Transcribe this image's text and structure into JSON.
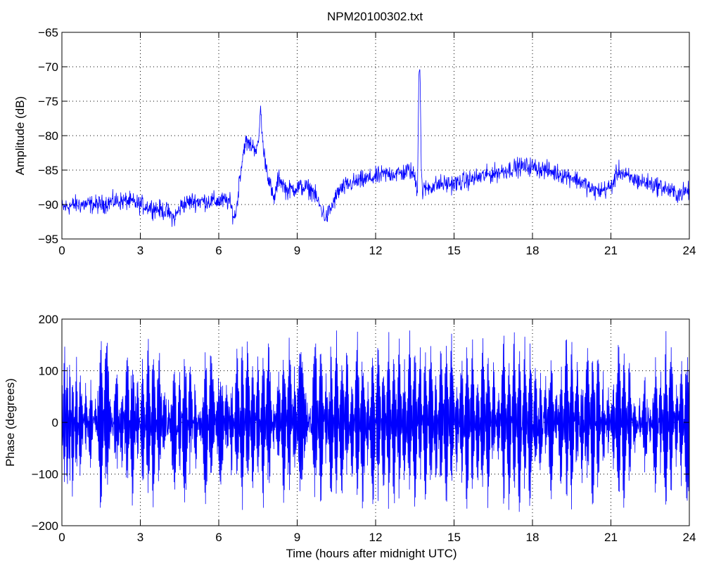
{
  "figure_title": "NPM20100302.txt",
  "colors": {
    "series": "#0000ff",
    "axes": "#000000",
    "grid": "#000000",
    "background": "#ffffff"
  },
  "chart_data": [
    {
      "type": "line",
      "title": "NPM20100302.txt",
      "xlabel": "",
      "ylabel": "Amplitude (dB)",
      "xlim": [
        0,
        24
      ],
      "ylim": [
        -95,
        -65
      ],
      "xticks": [
        0,
        3,
        6,
        9,
        12,
        15,
        18,
        21,
        24
      ],
      "yticks": [
        -95,
        -90,
        -85,
        -80,
        -75,
        -70,
        -65
      ],
      "grid": true,
      "noisy_trace": true,
      "series": [
        {
          "x": [
            0,
            0.5,
            1.0,
            1.5,
            2.0,
            2.5,
            3.0,
            3.5,
            4.0,
            4.3,
            4.6,
            5.0,
            5.5,
            6.0,
            6.4,
            6.6,
            6.7,
            6.8,
            7.0,
            7.3,
            7.5,
            7.6,
            7.7,
            7.9,
            8.1,
            8.3,
            8.6,
            9.0,
            9.3,
            9.6,
            9.9,
            10.1,
            10.3,
            10.6,
            11.0,
            11.5,
            12.0,
            12.5,
            13.0,
            13.3,
            13.5,
            13.6,
            13.65,
            13.7,
            13.75,
            13.8,
            14.0,
            14.5,
            15.0,
            15.5,
            16.0,
            16.5,
            17.0,
            17.5,
            18.0,
            18.5,
            19.0,
            19.5,
            20.0,
            20.3,
            20.6,
            21.0,
            21.3,
            21.6,
            22.0,
            22.5,
            23.0,
            23.5,
            24.0
          ],
          "y": [
            -90.5,
            -90,
            -90,
            -90,
            -89.5,
            -89.5,
            -90,
            -90.5,
            -91,
            -92,
            -90,
            -89.5,
            -89.5,
            -89.5,
            -89.5,
            -92,
            -90,
            -86,
            -81,
            -81.5,
            -82,
            -76,
            -82,
            -86,
            -89.5,
            -86,
            -88,
            -87.5,
            -87.5,
            -88,
            -90.5,
            -92,
            -90.5,
            -88,
            -87,
            -86.5,
            -86,
            -85.5,
            -85.5,
            -85,
            -86,
            -88,
            -71,
            -70,
            -86,
            -88,
            -87.5,
            -87,
            -87,
            -86.5,
            -86,
            -85.5,
            -85,
            -84.5,
            -84.5,
            -85,
            -85.5,
            -86,
            -87,
            -88,
            -88,
            -87.5,
            -85,
            -86,
            -86.5,
            -87,
            -87.5,
            -88.5,
            -88
          ]
        }
      ]
    },
    {
      "type": "line",
      "title": "",
      "xlabel": "Time (hours after midnight UTC)",
      "ylabel": "Phase (degrees)",
      "xlim": [
        0,
        24
      ],
      "ylim": [
        -200,
        200
      ],
      "xticks": [
        0,
        3,
        6,
        9,
        12,
        15,
        18,
        21,
        24
      ],
      "yticks": [
        -200,
        -100,
        0,
        100,
        200
      ],
      "grid": true,
      "phase_wrapped": true,
      "series": [
        {
          "x": [
            0,
            0.1,
            0.2,
            0.3,
            0.4,
            0.55,
            0.7,
            0.9,
            1.1,
            1.3,
            1.5,
            1.7,
            1.9,
            2.1,
            2.3,
            2.5,
            2.7,
            2.9,
            3.1,
            3.3,
            3.5,
            3.7,
            3.9,
            4.1,
            4.3,
            4.5,
            4.7,
            4.9,
            5.1,
            5.3,
            5.5,
            5.7,
            5.9,
            6.1,
            6.3,
            6.5,
            6.7,
            6.9,
            7.1,
            7.3,
            7.5,
            7.7,
            7.9,
            8.1,
            8.3,
            8.5,
            8.7,
            8.9,
            9.1,
            9.3,
            9.5,
            9.7,
            9.9,
            10.1,
            10.3,
            10.5,
            10.7,
            10.9,
            11.1,
            11.3,
            11.5,
            11.7,
            11.9,
            12.1,
            12.3,
            12.5,
            12.7,
            12.9,
            13.1,
            13.3,
            13.5,
            13.7,
            13.9,
            14.1,
            14.3,
            14.5,
            14.7,
            14.9,
            15.1,
            15.3,
            15.5,
            15.7,
            15.9,
            16.1,
            16.3,
            16.5,
            16.7,
            16.9,
            17.1,
            17.3,
            17.5,
            17.7,
            17.9,
            18.1,
            18.3,
            18.5,
            18.7,
            18.9,
            19.1,
            19.3,
            19.5,
            19.7,
            19.9,
            20.1,
            20.3,
            20.5,
            20.7,
            20.9,
            21.1,
            21.3,
            21.5,
            21.7,
            21.9,
            22.1,
            22.3,
            22.5,
            22.7,
            22.9,
            23.1,
            23.3,
            23.5,
            23.7,
            23.9,
            24.0
          ],
          "y": [
            -100,
            170,
            -170,
            150,
            -150,
            120,
            -120,
            60,
            -80,
            40,
            -170,
            170,
            -20,
            100,
            -90,
            160,
            -160,
            80,
            -140,
            175,
            -175,
            140,
            -60,
            30,
            -130,
            100,
            -170,
            120,
            -80,
            40,
            -170,
            150,
            -30,
            -120,
            80,
            -100,
            150,
            -170,
            170,
            -150,
            120,
            -170,
            170,
            -60,
            100,
            -160,
            160,
            -110,
            150,
            60,
            -30,
            170,
            -170,
            90,
            -150,
            170,
            -170,
            140,
            -120,
            170,
            -160,
            80,
            -170,
            170,
            -160,
            170,
            -170,
            160,
            -140,
            175,
            -175,
            150,
            -170,
            170,
            -120,
            160,
            -175,
            170,
            -100,
            130,
            -170,
            150,
            -130,
            170,
            -160,
            120,
            -90,
            170,
            -170,
            175,
            -175,
            160,
            -170,
            110,
            -100,
            90,
            -160,
            60,
            -130,
            170,
            -170,
            130,
            -110,
            170,
            -175,
            140,
            -80,
            60,
            -90,
            170,
            -170,
            120,
            -60,
            50,
            -90,
            40,
            -120,
            100,
            -170,
            170,
            -100,
            130,
            -160,
            -100
          ]
        }
      ]
    }
  ]
}
